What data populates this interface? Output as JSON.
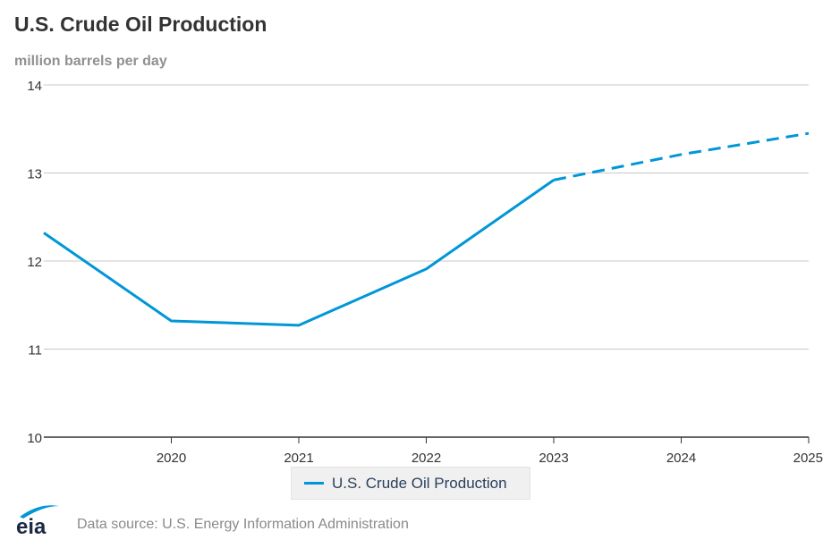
{
  "header": {
    "title": "U.S. Crude Oil Production",
    "subtitle": "million barrels per day"
  },
  "legend": {
    "items": [
      {
        "label": "U.S. Crude Oil Production",
        "color": "#0096d7"
      }
    ]
  },
  "footer": {
    "logo_text": "eia",
    "source": "Data source: U.S. Energy Information Administration"
  },
  "chart_data": {
    "type": "line",
    "title": "U.S. Crude Oil Production",
    "ylabel": "million barrels per day",
    "xlabel": "",
    "xlim": [
      2019,
      2025
    ],
    "ylim": [
      10,
      14
    ],
    "yticks": [
      10,
      11,
      12,
      13,
      14
    ],
    "xticks": [
      2020,
      2021,
      2022,
      2023,
      2024,
      2025
    ],
    "grid": true,
    "legend_position": "bottom-center",
    "series": [
      {
        "name": "U.S. Crude Oil Production",
        "color": "#0096d7",
        "historical": {
          "x": [
            2019,
            2020,
            2021,
            2022,
            2023
          ],
          "y": [
            12.32,
            11.32,
            11.27,
            11.91,
            12.92
          ]
        },
        "forecast": {
          "x": [
            2023,
            2024,
            2025
          ],
          "y": [
            12.92,
            13.21,
            13.45
          ],
          "style": "dashed"
        }
      }
    ]
  }
}
